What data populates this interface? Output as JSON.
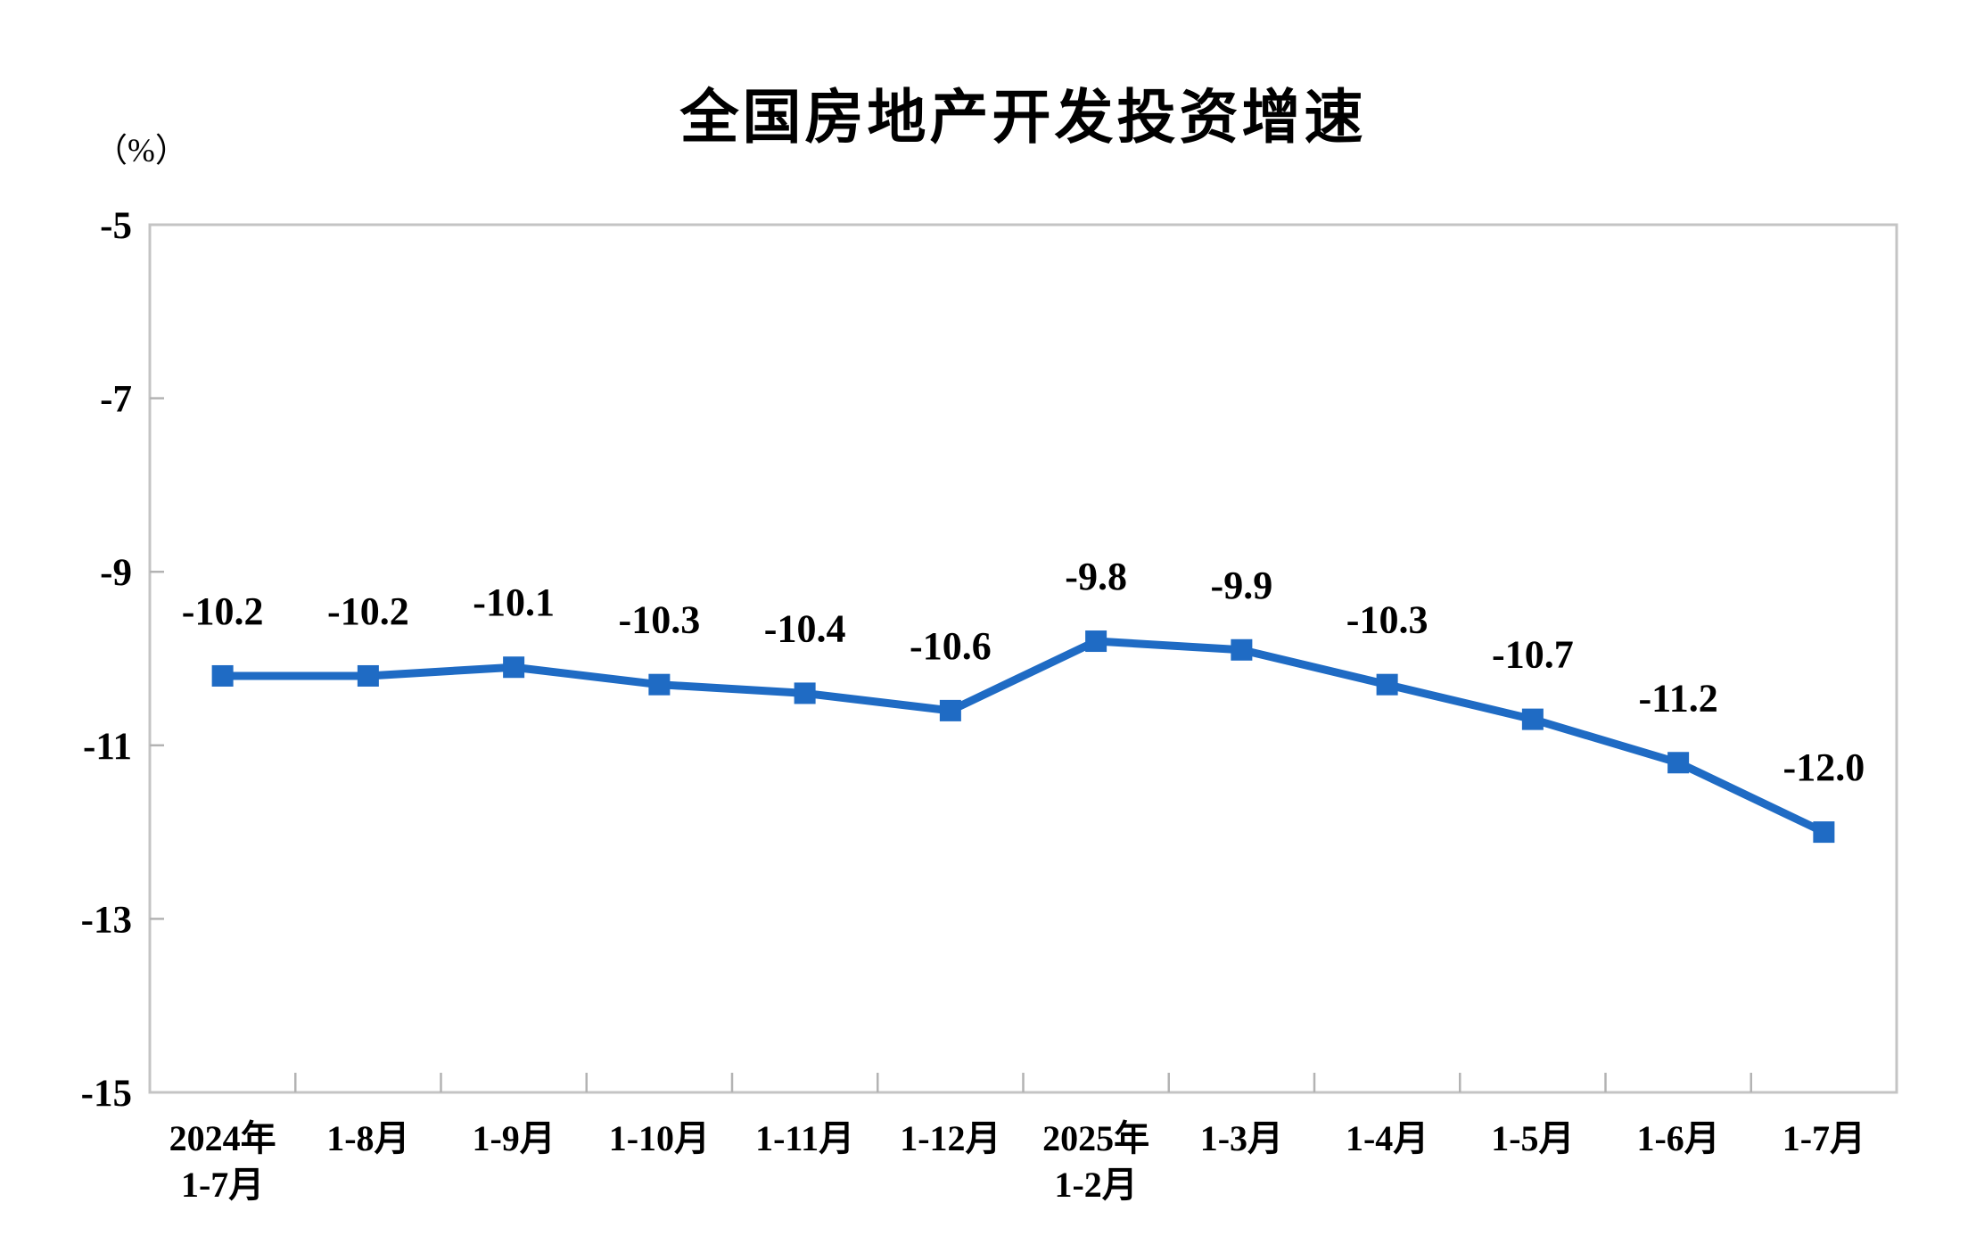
{
  "chart": {
    "title": "全国房地产开发投资增速",
    "unit_label": "（%）"
  },
  "chart_data": {
    "type": "line",
    "title": "全国房地产开发投资增速",
    "unit": "%",
    "categories": [
      [
        "2024年",
        "1-7月"
      ],
      [
        "1-8月"
      ],
      [
        "1-9月"
      ],
      [
        "1-10月"
      ],
      [
        "1-11月"
      ],
      [
        "1-12月"
      ],
      [
        "2025年",
        "1-2月"
      ],
      [
        "1-3月"
      ],
      [
        "1-4月"
      ],
      [
        "1-5月"
      ],
      [
        "1-6月"
      ],
      [
        "1-7月"
      ]
    ],
    "values": [
      -10.2,
      -10.2,
      -10.1,
      -10.3,
      -10.4,
      -10.6,
      -9.8,
      -9.9,
      -10.3,
      -10.7,
      -11.2,
      -12.0
    ],
    "data_labels": [
      "-10.2",
      "-10.2",
      "-10.1",
      "-10.3",
      "-10.4",
      "-10.6",
      "-9.8",
      "-9.9",
      "-10.3",
      "-10.7",
      "-11.2",
      "-12.0"
    ],
    "ylim": [
      -15,
      -5
    ],
    "yticks": [
      -5,
      -7,
      -9,
      -11,
      -13,
      -15
    ],
    "xlabel": "",
    "ylabel": "（%）",
    "grid": false,
    "legend_position": "none",
    "marker": "square",
    "line_color": "#1f6bc4",
    "axis_color": "#c4c4c4",
    "tick_color": "#b3b3b3",
    "text_color": "#000000"
  }
}
